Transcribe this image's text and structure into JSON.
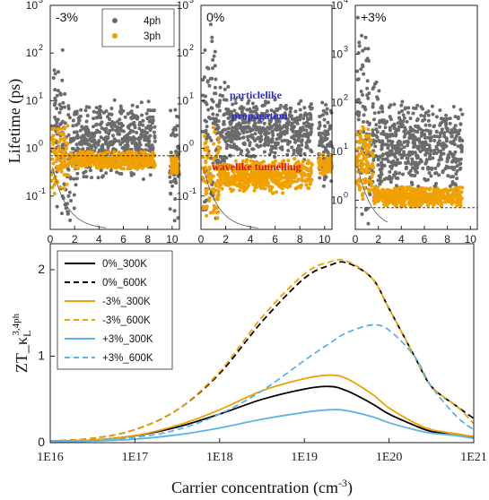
{
  "colors": {
    "four_ph": "#6b6b6b",
    "three_ph": "#f0a000",
    "black": "#000000",
    "blue_curve": "#5ab4e5",
    "annot_blue": "#2a2ad0",
    "annot_red": "#e01010"
  },
  "chart_data": [
    {
      "type": "scatter",
      "panel": "left",
      "strain_label": "-3%",
      "ylabel": "Lifetime (ps)",
      "yscale": "log",
      "ylim_exp": [
        -1.7,
        3
      ],
      "y_tick_labels": [
        "10",
        "10",
        "10",
        "10",
        "10"
      ],
      "y_tick_exps": [
        "-1",
        "0",
        "1",
        "2",
        "3"
      ],
      "xlim": [
        0,
        10.6
      ],
      "x_tick_labels": [
        "0",
        "2",
        "4",
        "6",
        "8",
        "10"
      ],
      "dashed_line_y": 0.7,
      "legend": {
        "position": "top-right",
        "entries": [
          {
            "name": "4ph",
            "color": "#6b6b6b"
          },
          {
            "name": "3ph",
            "color": "#f0a000"
          }
        ]
      },
      "series": [
        {
          "name": "4ph",
          "color": "#6b6b6b",
          "bands": [
            {
              "x0": 0.15,
              "x1": 1.2,
              "lo_exp": -1.7,
              "hi_exp": 2.5
            },
            {
              "x0": 1.2,
              "x1": 2.2,
              "lo_exp": -1.7,
              "hi_exp": 1.4
            },
            {
              "x0": 2.2,
              "x1": 8.6,
              "lo_exp": -0.7,
              "hi_exp": 1.05
            },
            {
              "x0": 9.8,
              "x1": 10.6,
              "lo_exp": -1.6,
              "hi_exp": 1.0
            }
          ]
        },
        {
          "name": "3ph",
          "color": "#f0a000",
          "bands": [
            {
              "x0": 0.1,
              "x1": 1.5,
              "lo_exp": -1.0,
              "hi_exp": 0.6
            },
            {
              "x0": 1.5,
              "x1": 8.6,
              "lo_exp": -0.45,
              "hi_exp": -0.05
            },
            {
              "x0": 9.9,
              "x1": 10.6,
              "lo_exp": -0.6,
              "hi_exp": -0.1
            }
          ]
        }
      ]
    },
    {
      "type": "scatter",
      "panel": "middle",
      "strain_label": "0%",
      "yscale": "log",
      "ylim_exp": [
        -1.7,
        3
      ],
      "y_tick_labels": [
        "10",
        "10",
        "10",
        "10",
        "10"
      ],
      "y_tick_exps": [
        "-1",
        "0",
        "1",
        "2",
        "3"
      ],
      "xlim": [
        0,
        10.6
      ],
      "x_tick_labels": [
        "0",
        "2",
        "4",
        "6",
        "8",
        "10"
      ],
      "dashed_line_y": 0.7,
      "annotations": {
        "particlelike": "particlelike",
        "propagation": "propagation",
        "wavelike": "wavelike tunnelling"
      },
      "series": [
        {
          "name": "4ph",
          "color": "#6b6b6b",
          "bands": [
            {
              "x0": 0.15,
              "x1": 1.2,
              "lo_exp": -1.7,
              "hi_exp": 2.8
            },
            {
              "x0": 1.2,
              "x1": 2.2,
              "lo_exp": -0.8,
              "hi_exp": 1.6
            },
            {
              "x0": 2.2,
              "x1": 9.0,
              "lo_exp": -0.3,
              "hi_exp": 1.1
            },
            {
              "x0": 9.5,
              "x1": 10.6,
              "lo_exp": -0.9,
              "hi_exp": 1.0
            }
          ]
        },
        {
          "name": "3ph",
          "color": "#f0a000",
          "bands": [
            {
              "x0": 0.1,
              "x1": 1.5,
              "lo_exp": -1.6,
              "hi_exp": 0.5
            },
            {
              "x0": 1.5,
              "x1": 9.0,
              "lo_exp": -0.95,
              "hi_exp": -0.2
            },
            {
              "x0": 9.5,
              "x1": 10.6,
              "lo_exp": -0.6,
              "hi_exp": -0.1
            }
          ]
        }
      ]
    },
    {
      "type": "scatter",
      "panel": "right",
      "strain_label": "+3%",
      "yscale": "log",
      "ylim_exp": [
        -0.6,
        4
      ],
      "y_tick_labels": [
        "10",
        "10",
        "10",
        "10",
        "10"
      ],
      "y_tick_exps": [
        "0",
        "1",
        "2",
        "3",
        "4"
      ],
      "xlim": [
        0,
        10.6
      ],
      "x_tick_labels": [
        "0",
        "2",
        "4",
        "6",
        "8",
        "10"
      ],
      "dashed_line_y": 0.7,
      "series": [
        {
          "name": "4ph",
          "color": "#6b6b6b",
          "bands": [
            {
              "x0": 0.15,
              "x1": 1.2,
              "lo_exp": -0.6,
              "hi_exp": 3.8
            },
            {
              "x0": 1.2,
              "x1": 2.2,
              "lo_exp": -0.3,
              "hi_exp": 2.8
            },
            {
              "x0": 2.2,
              "x1": 9.3,
              "lo_exp": 0.1,
              "hi_exp": 2.1
            }
          ]
        },
        {
          "name": "3ph",
          "color": "#f0a000",
          "bands": [
            {
              "x0": 0.1,
              "x1": 1.6,
              "lo_exp": -0.1,
              "hi_exp": 1.7
            },
            {
              "x0": 1.6,
              "x1": 9.3,
              "lo_exp": -0.15,
              "hi_exp": 0.3
            }
          ]
        }
      ]
    },
    {
      "type": "line",
      "panel": "bottom",
      "xlabel": "Carrier concentration (cm",
      "xlabel_sup": "-3",
      "xlabel_end": ")",
      "ylabel": "ZT_κ",
      "ylabel_sub": "L",
      "ylabel_sup": "3,4ph",
      "xscale": "log",
      "xlim_exp": [
        16,
        21
      ],
      "x_tick_labels": [
        "1E16",
        "1E17",
        "1E18",
        "1E19",
        "1E20",
        "1E21"
      ],
      "ylim": [
        0,
        2.3
      ],
      "y_tick_labels": [
        "0",
        "1",
        "2"
      ],
      "legend": {
        "position": "top-left"
      },
      "x_exp": [
        16.0,
        16.5,
        17.0,
        17.5,
        18.0,
        18.5,
        19.0,
        19.3,
        19.5,
        19.8,
        20.0,
        20.3,
        20.5,
        20.8,
        21.0
      ],
      "series": [
        {
          "name": "0%_300K",
          "color": "#000000",
          "dash": false,
          "values": [
            0.02,
            0.03,
            0.08,
            0.18,
            0.33,
            0.5,
            0.62,
            0.65,
            0.6,
            0.45,
            0.33,
            0.2,
            0.13,
            0.1,
            0.06
          ]
        },
        {
          "name": "0%_600K",
          "color": "#000000",
          "dash": true,
          "values": [
            0.02,
            0.05,
            0.15,
            0.38,
            0.8,
            1.4,
            1.9,
            2.05,
            2.08,
            1.9,
            1.55,
            1.0,
            0.65,
            0.42,
            0.28
          ]
        },
        {
          "name": "-3%_300K",
          "color": "#f0a000",
          "dash": false,
          "values": [
            0.02,
            0.03,
            0.08,
            0.2,
            0.38,
            0.6,
            0.74,
            0.78,
            0.74,
            0.56,
            0.4,
            0.23,
            0.15,
            0.1,
            0.07
          ]
        },
        {
          "name": "-3%_600K",
          "color": "#f0a000",
          "dash": true,
          "values": [
            0.02,
            0.05,
            0.15,
            0.38,
            0.82,
            1.45,
            1.95,
            2.09,
            2.1,
            1.9,
            1.55,
            1.0,
            0.65,
            0.42,
            0.22
          ]
        },
        {
          "name": "+3%_300K",
          "color": "#5ab4e5",
          "dash": false,
          "values": [
            0.01,
            0.02,
            0.04,
            0.09,
            0.17,
            0.27,
            0.35,
            0.38,
            0.37,
            0.3,
            0.23,
            0.15,
            0.11,
            0.08,
            0.05
          ]
        },
        {
          "name": "+3%_600K",
          "color": "#5ab4e5",
          "dash": true,
          "values": [
            0.01,
            0.02,
            0.06,
            0.15,
            0.33,
            0.6,
            0.95,
            1.15,
            1.27,
            1.36,
            1.3,
            1.0,
            0.65,
            0.3,
            0.15
          ]
        }
      ]
    }
  ]
}
